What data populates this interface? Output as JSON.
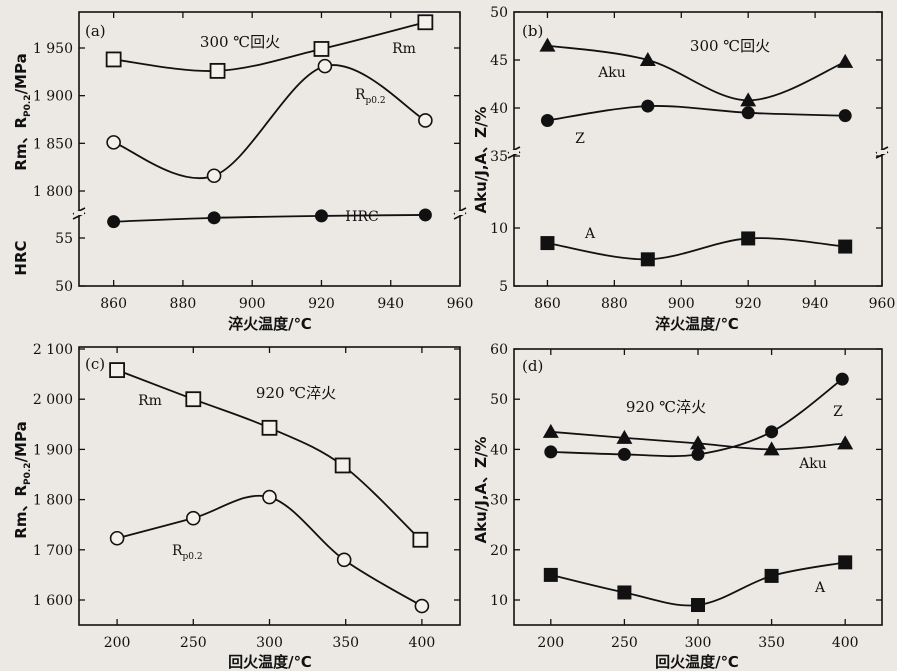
{
  "chart_data": [
    {
      "id": "a",
      "type": "line",
      "panel_label": "(a)",
      "annotation": "300 ℃回火",
      "xlabel": "淬火温度/℃",
      "ylabel_upper": "Rm、R",
      "ylabel_upper_sub": "P0.2",
      "ylabel_upper_tail": "/MPa",
      "ylabel_lower": "HRC",
      "xlim": [
        850,
        960
      ],
      "x_ticks": [
        "860",
        "880",
        "900",
        "920",
        "940",
        "960"
      ],
      "y_upper_ticks": [
        "1 800",
        "1 850",
        "1 900",
        "1 950"
      ],
      "y_lower_ticks": [
        "50",
        "55"
      ],
      "y_upper_range": [
        1775,
        1975
      ],
      "y_lower_range": [
        50,
        57.5
      ],
      "series": [
        {
          "name": "Rm",
          "label": "Rm",
          "marker": "square",
          "x": [
            860,
            890,
            920,
            950
          ],
          "y": [
            1938,
            1926,
            1949,
            1977
          ]
        },
        {
          "name": "Rp0.2",
          "label": "R",
          "label_sub": "p0.2",
          "marker": "circle",
          "x": [
            860,
            889,
            921,
            950
          ],
          "y": [
            1851,
            1816,
            1931,
            1874
          ]
        },
        {
          "name": "HRC",
          "label": "HRC",
          "marker": "filled-circle",
          "x": [
            860,
            889,
            920,
            950
          ],
          "y": [
            56.7,
            57.1,
            57.3,
            57.4
          ]
        }
      ]
    },
    {
      "id": "b",
      "type": "line",
      "panel_label": "(b)",
      "annotation": "300 ℃回火",
      "xlabel": "淬火温度/℃",
      "ylabel": "Aku/J,A、Z/%",
      "xlim": [
        850,
        960
      ],
      "x_ticks": [
        "860",
        "880",
        "900",
        "920",
        "940",
        "960"
      ],
      "y_ticks": [
        "5",
        "10",
        "35",
        "40",
        "45",
        "50"
      ],
      "series": [
        {
          "name": "Aku",
          "label": "Aku",
          "marker": "filled-triangle",
          "x": [
            860,
            890,
            920,
            949
          ],
          "y": [
            46.5,
            45.0,
            40.8,
            44.8
          ]
        },
        {
          "name": "Z",
          "label": "Z",
          "marker": "filled-circle",
          "x": [
            860,
            890,
            920,
            949
          ],
          "y": [
            38.7,
            40.2,
            39.5,
            39.2
          ]
        },
        {
          "name": "A",
          "label": "A",
          "marker": "filled-square",
          "x": [
            860,
            890,
            920,
            949
          ],
          "y": [
            8.7,
            7.3,
            9.1,
            8.4
          ]
        }
      ]
    },
    {
      "id": "c",
      "type": "line",
      "panel_label": "(c)",
      "annotation": "920 ℃淬火",
      "xlabel": "回火温度/℃",
      "ylabel": "Rm、R",
      "ylabel_sub": "P0.2",
      "ylabel_tail": "/MPa",
      "xlim": [
        175,
        425
      ],
      "ylim": [
        1560,
        2100
      ],
      "x_ticks": [
        "200",
        "250",
        "300",
        "350",
        "400"
      ],
      "y_ticks": [
        "1 600",
        "1 700",
        "1 800",
        "1 900",
        "2 000",
        "2 100"
      ],
      "series": [
        {
          "name": "Rm",
          "label": "Rm",
          "marker": "square",
          "x": [
            200,
            250,
            300,
            348,
            399
          ],
          "y": [
            2058,
            2000,
            1943,
            1868,
            1720
          ]
        },
        {
          "name": "Rp0.2",
          "label": "R",
          "label_sub": "p0.2",
          "marker": "circle",
          "x": [
            200,
            250,
            300,
            349,
            400
          ],
          "y": [
            1723,
            1763,
            1805,
            1680,
            1588
          ]
        }
      ]
    },
    {
      "id": "d",
      "type": "line",
      "panel_label": "(d)",
      "annotation": "920 ℃淬火",
      "xlabel": "回火温度/℃",
      "ylabel": "Aku/J,A、Z/%",
      "xlim": [
        175,
        425
      ],
      "ylim": [
        5,
        60
      ],
      "x_ticks": [
        "200",
        "250",
        "300",
        "350",
        "400"
      ],
      "y_ticks": [
        "10",
        "20",
        "30",
        "40",
        "50",
        "60"
      ],
      "series": [
        {
          "name": "Z",
          "label": "Z",
          "marker": "filled-circle",
          "x": [
            200,
            250,
            300,
            350,
            398
          ],
          "y": [
            39.5,
            39.0,
            39.0,
            43.5,
            54.0
          ]
        },
        {
          "name": "Aku",
          "label": "Aku",
          "marker": "filled-triangle",
          "x": [
            200,
            250,
            300,
            350,
            400
          ],
          "y": [
            43.5,
            42.3,
            41.2,
            40.0,
            41.2
          ]
        },
        {
          "name": "A",
          "label": "A",
          "marker": "filled-square",
          "x": [
            200,
            250,
            300,
            350,
            400
          ],
          "y": [
            15.0,
            11.5,
            9.0,
            14.8,
            17.5
          ]
        }
      ]
    }
  ]
}
